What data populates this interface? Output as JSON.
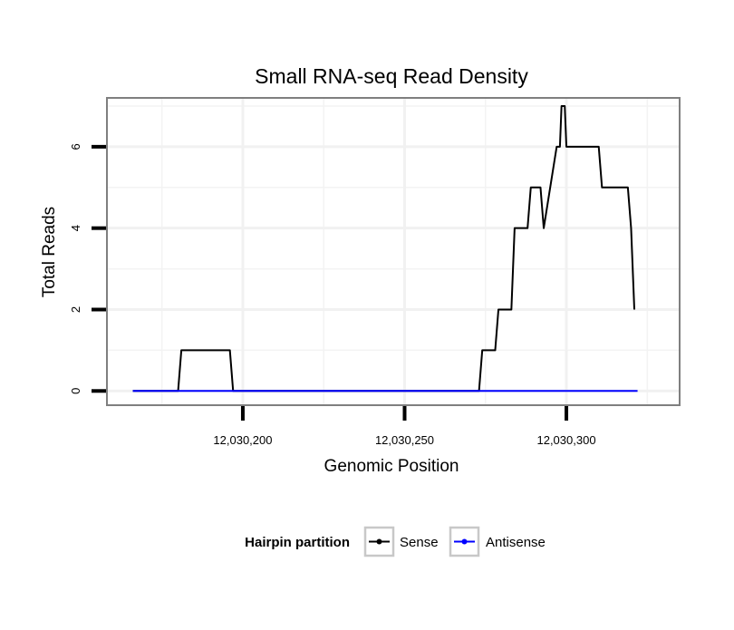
{
  "chart_data": {
    "type": "line",
    "title": "Small RNA-seq Read Density",
    "xlabel": "Genomic Position",
    "ylabel": "Total Reads",
    "xlim": [
      12030158,
      12030335
    ],
    "ylim": [
      -0.35,
      7.2
    ],
    "x_ticks": [
      12030200,
      12030250,
      12030300
    ],
    "x_tick_labels": [
      "12,030,200",
      "12,030,250",
      "12,030,300"
    ],
    "y_ticks": [
      0,
      2,
      4,
      6
    ],
    "y_tick_labels": [
      "0",
      "2",
      "4",
      "6"
    ],
    "x_minor_ticks": [
      12030175,
      12030225,
      12030275,
      12030325
    ],
    "y_minor_ticks": [
      1,
      3,
      5,
      7
    ],
    "grid": true,
    "legend": {
      "title": "Hairpin partition",
      "position": "bottom"
    },
    "series": [
      {
        "name": "Sense",
        "color": "#000000",
        "x": [
          12030166,
          12030180,
          12030181,
          12030196,
          12030197,
          12030273,
          12030274,
          12030278,
          12030279,
          12030283,
          12030284,
          12030288,
          12030289,
          12030292,
          12030293,
          12030297,
          12030298,
          12030298.5,
          12030299.5,
          12030300,
          12030301,
          12030302,
          12030303,
          12030310,
          12030311,
          12030319,
          12030320,
          12030321
        ],
        "y": [
          0,
          0,
          1,
          1,
          0,
          0,
          1,
          1,
          2,
          2,
          4,
          4,
          5,
          5,
          4,
          6,
          6,
          7,
          7,
          6,
          6,
          6,
          6,
          6,
          5,
          5,
          4,
          2
        ]
      },
      {
        "name": "Antisense",
        "color": "#0000ff",
        "x": [
          12030166,
          12030322
        ],
        "y": [
          0,
          0
        ]
      }
    ]
  }
}
